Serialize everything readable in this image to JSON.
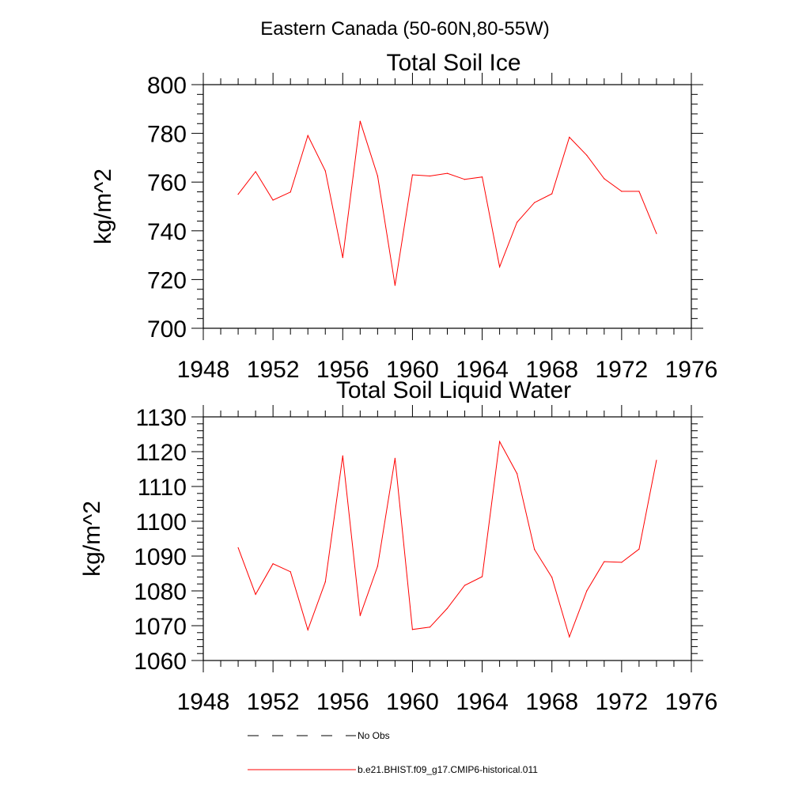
{
  "figure_title": "Eastern Canada (50-60N,80-55W)",
  "colors": {
    "series": "#ff0000",
    "axis": "#000000",
    "no_obs": "#000000"
  },
  "legend": {
    "placement": "bottom",
    "entries": [
      {
        "label": "No Obs",
        "style": "dashed",
        "color": "#000000"
      },
      {
        "label": "b.e21.BHIST.f09_g17.CMIP6-historical.011",
        "style": "solid",
        "color": "#ff0000"
      }
    ]
  },
  "chart_data": [
    {
      "type": "line",
      "title": "Total Soil Ice",
      "ylabel": "kg/m^2",
      "xlabel": "",
      "xlim": [
        1948,
        1976
      ],
      "ylim": [
        700,
        800
      ],
      "xticks": [
        1948,
        1952,
        1956,
        1960,
        1964,
        1968,
        1972,
        1976
      ],
      "yticks": [
        700,
        720,
        740,
        760,
        780,
        800
      ],
      "xminor": 1,
      "yminor": 4,
      "grid": false,
      "series": [
        {
          "name": "b.e21.BHIST.f09_g17.CMIP6-historical.011",
          "x": [
            1950,
            1951,
            1952,
            1953,
            1954,
            1955,
            1956,
            1957,
            1958,
            1959,
            1960,
            1961,
            1962,
            1963,
            1964,
            1965,
            1966,
            1967,
            1968,
            1969,
            1970,
            1971,
            1972,
            1973,
            1974
          ],
          "values": [
            755.0,
            764.3,
            752.6,
            755.9,
            779.1,
            764.6,
            729.0,
            785.0,
            762.5,
            717.6,
            763.0,
            762.5,
            763.6,
            761.1,
            762.1,
            725.2,
            743.5,
            751.6,
            755.2,
            778.4,
            771.0,
            761.4,
            756.2,
            756.2,
            738.9
          ]
        }
      ]
    },
    {
      "type": "line",
      "title": "Total Soil Liquid Water",
      "ylabel": "kg/m^2",
      "xlabel": "",
      "xlim": [
        1948,
        1976
      ],
      "ylim": [
        1060,
        1130
      ],
      "xticks": [
        1948,
        1952,
        1956,
        1960,
        1964,
        1968,
        1972,
        1976
      ],
      "yticks": [
        1060,
        1070,
        1080,
        1090,
        1100,
        1110,
        1120,
        1130
      ],
      "xminor": 1,
      "yminor": 4,
      "grid": false,
      "series": [
        {
          "name": "b.e21.BHIST.f09_g17.CMIP6-historical.011",
          "x": [
            1950,
            1951,
            1952,
            1953,
            1954,
            1955,
            1956,
            1957,
            1958,
            1959,
            1960,
            1961,
            1962,
            1963,
            1964,
            1965,
            1966,
            1967,
            1968,
            1969,
            1970,
            1971,
            1972,
            1973,
            1974
          ],
          "values": [
            1092.4,
            1079.0,
            1087.8,
            1085.5,
            1068.8,
            1082.6,
            1118.8,
            1072.9,
            1087.1,
            1118.1,
            1068.9,
            1069.6,
            1075.0,
            1081.6,
            1084.1,
            1122.9,
            1113.7,
            1091.9,
            1083.9,
            1066.8,
            1080.0,
            1088.4,
            1088.2,
            1092.0,
            1117.5
          ]
        }
      ]
    }
  ]
}
